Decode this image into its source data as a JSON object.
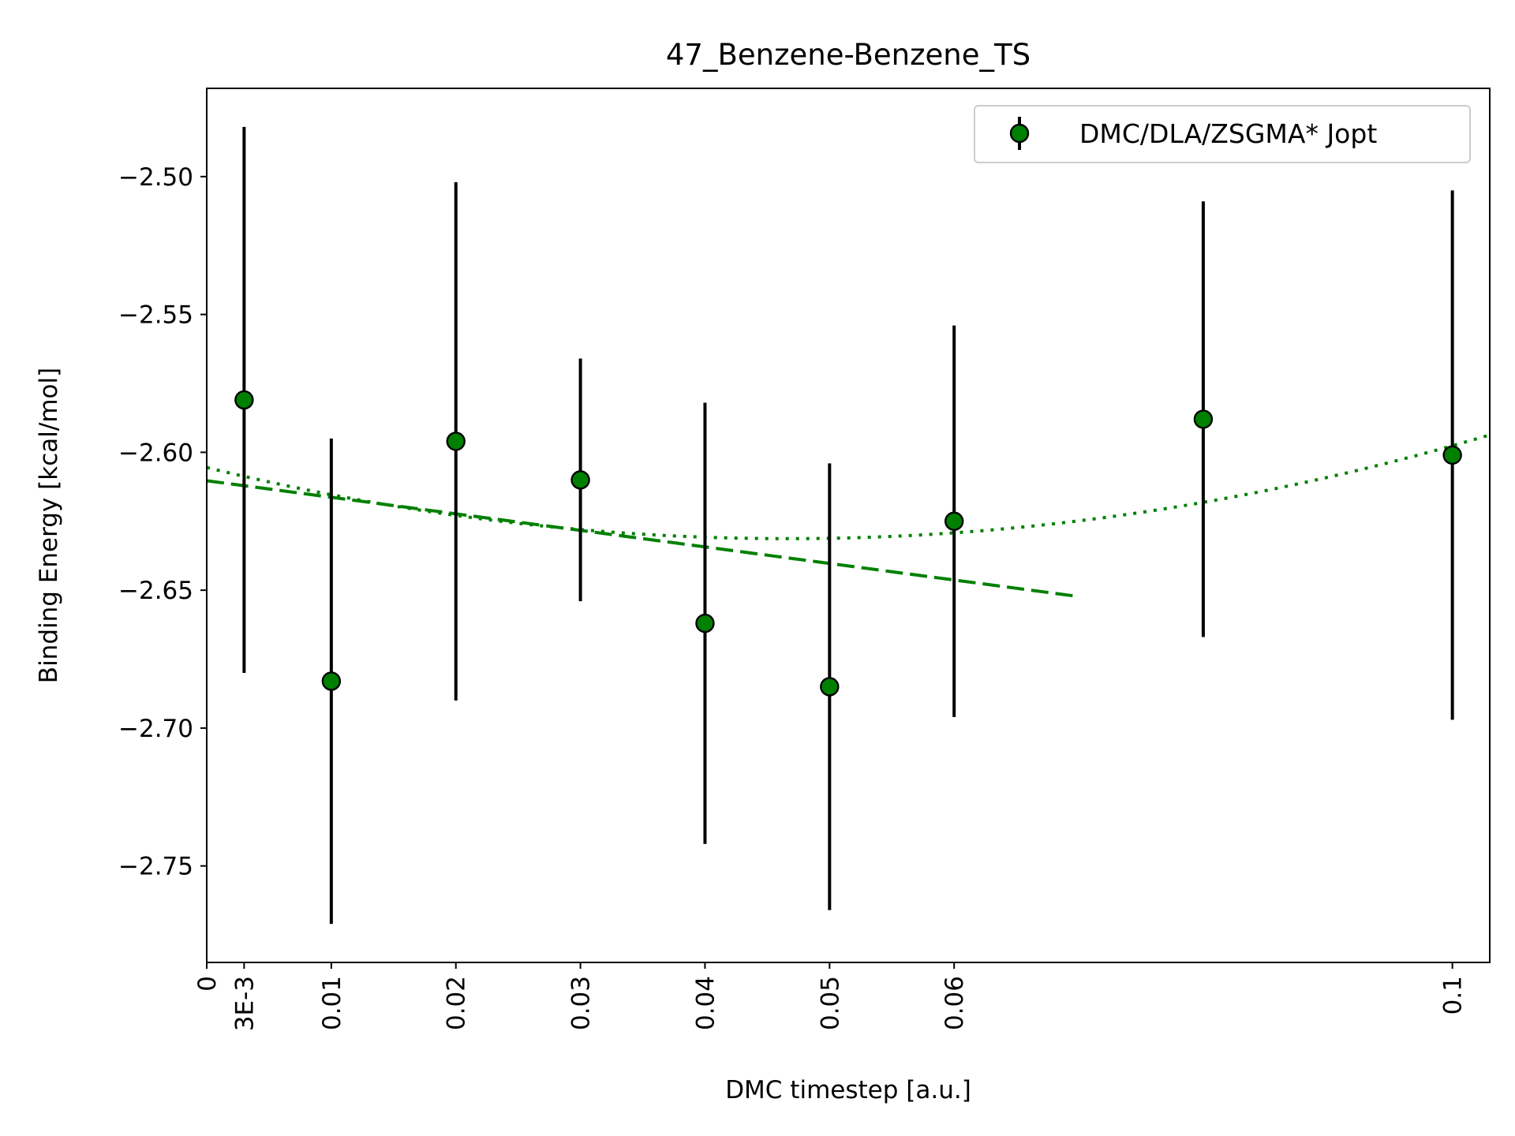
{
  "chart_data": {
    "type": "scatter",
    "title": "47_Benzene-Benzene_TS",
    "xlabel": "DMC timestep [a.u.]",
    "ylabel": "Binding Energy [kcal/mol]",
    "xlim": [
      0,
      0.103
    ],
    "ylim": [
      -2.785,
      -2.468
    ],
    "grid": false,
    "legend_position": "top-right",
    "x_ticks": [
      {
        "value": 0,
        "label": "0"
      },
      {
        "value": 0.003,
        "label": "3E-3"
      },
      {
        "value": 0.01,
        "label": "0.01"
      },
      {
        "value": 0.02,
        "label": "0.02"
      },
      {
        "value": 0.03,
        "label": "0.03"
      },
      {
        "value": 0.04,
        "label": "0.04"
      },
      {
        "value": 0.05,
        "label": "0.05"
      },
      {
        "value": 0.06,
        "label": "0.06"
      },
      {
        "value": 0.1,
        "label": "0.1"
      }
    ],
    "y_ticks": [
      {
        "value": -2.5,
        "label": "−2.50"
      },
      {
        "value": -2.55,
        "label": "−2.55"
      },
      {
        "value": -2.6,
        "label": "−2.60"
      },
      {
        "value": -2.65,
        "label": "−2.65"
      },
      {
        "value": -2.7,
        "label": "−2.70"
      },
      {
        "value": -2.75,
        "label": "−2.75"
      }
    ],
    "series": [
      {
        "name": "DMC/DLA/ZSGMA* Jopt",
        "color": "#008000",
        "marker_edge": "#000000",
        "x": [
          0.003,
          0.01,
          0.02,
          0.03,
          0.04,
          0.05,
          0.06,
          0.08,
          0.1
        ],
        "y": [
          -2.581,
          -2.683,
          -2.596,
          -2.61,
          -2.662,
          -2.685,
          -2.625,
          -2.588,
          -2.601
        ],
        "yerr": [
          0.099,
          0.088,
          0.094,
          0.044,
          0.08,
          0.081,
          0.071,
          0.079,
          0.096
        ]
      }
    ],
    "fits": [
      {
        "kind": "linear",
        "style": "dashed",
        "color": "#008000",
        "x_range": [
          0,
          0.07
        ],
        "coefficients": [
          -2.6103,
          -0.6
        ]
      },
      {
        "kind": "quadratic",
        "style": "dotted",
        "color": "#008000",
        "x_range": [
          0,
          0.103
        ],
        "coefficients": [
          -2.6055,
          -1.106,
          11.85
        ]
      }
    ]
  }
}
